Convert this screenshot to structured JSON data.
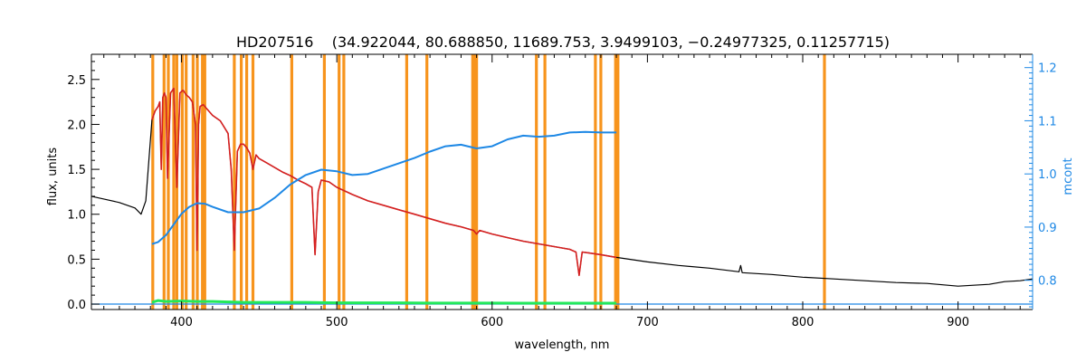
{
  "chart_data": {
    "type": "line",
    "title": "HD207516    (34.922044, 80.688850, 11689.753, 3.9499103, −0.24977325, 0.11257715)",
    "xlabel": "wavelength, nm",
    "ylabel": "flux, units",
    "ylabel_right": "mcont",
    "xlim": [
      342,
      948
    ],
    "ylim": [
      -0.06,
      2.78
    ],
    "ylim_right": [
      0.745,
      1.225
    ],
    "x_ticks": [
      400,
      500,
      600,
      700,
      800,
      900
    ],
    "y_ticks": [
      0.0,
      0.5,
      1.0,
      1.5,
      2.0,
      2.5
    ],
    "y_ticks_right": [
      0.8,
      0.9,
      1.0,
      1.1,
      1.2
    ],
    "masked_lines_nm": [
      381.5,
      388.8,
      391.5,
      395.0,
      397.0,
      400.5,
      403.0,
      407.5,
      410.2,
      413.5,
      415.0,
      434.0,
      438.5,
      442.0,
      446.0,
      471.0,
      492.0,
      501.5,
      504.5,
      545.0,
      558.0,
      587.5,
      588.5,
      590.0,
      628.5,
      634.0,
      666.5,
      670.0,
      679.5,
      681.0,
      814.0
    ],
    "series": [
      {
        "name": "",
        "role": "observed",
        "color": "#000000",
        "x": [
          342,
          350,
          360,
          370,
          374,
          377,
          379,
          381,
          383,
          385,
          386,
          387,
          388,
          389,
          390,
          391,
          393,
          395,
          397,
          399,
          401,
          403,
          405,
          407,
          409,
          410,
          411,
          412,
          414,
          416,
          418,
          420,
          425,
          430,
          432,
          434,
          436,
          438,
          440,
          442,
          444,
          446,
          448,
          450,
          455,
          460,
          465,
          470,
          475,
          480,
          484,
          486,
          488,
          490,
          495,
          500,
          505,
          510,
          520,
          530,
          540,
          550,
          560,
          570,
          580,
          588,
          590,
          592,
          600,
          610,
          620,
          630,
          640,
          650,
          654,
          656,
          658,
          662,
          670,
          680,
          700,
          720,
          740,
          759,
          760,
          761,
          780,
          800,
          820,
          840,
          860,
          880,
          900,
          920,
          930,
          940,
          948
        ],
        "y": [
          1.2,
          1.17,
          1.13,
          1.07,
          1.0,
          1.15,
          1.6,
          2.05,
          2.15,
          2.2,
          2.25,
          1.5,
          2.3,
          2.35,
          2.3,
          1.4,
          2.35,
          2.4,
          1.3,
          2.35,
          2.38,
          2.33,
          2.3,
          2.25,
          2.0,
          0.6,
          2.0,
          2.2,
          2.22,
          2.18,
          2.14,
          2.1,
          2.04,
          1.9,
          1.5,
          0.6,
          1.7,
          1.78,
          1.78,
          1.74,
          1.68,
          1.5,
          1.66,
          1.62,
          1.57,
          1.52,
          1.47,
          1.43,
          1.38,
          1.34,
          1.3,
          0.55,
          1.25,
          1.38,
          1.36,
          1.3,
          1.26,
          1.22,
          1.15,
          1.1,
          1.05,
          1.0,
          0.95,
          0.9,
          0.86,
          0.82,
          0.78,
          0.82,
          0.78,
          0.74,
          0.7,
          0.67,
          0.64,
          0.61,
          0.58,
          0.32,
          0.58,
          0.57,
          0.55,
          0.52,
          0.47,
          0.43,
          0.4,
          0.36,
          0.43,
          0.35,
          0.33,
          0.3,
          0.28,
          0.26,
          0.24,
          0.23,
          0.2,
          0.22,
          0.25,
          0.26,
          0.28
        ]
      },
      {
        "name": "",
        "role": "model",
        "color": "#d62020",
        "x": [
          381,
          383,
          385,
          386,
          387,
          388,
          389,
          390,
          391,
          393,
          395,
          397,
          399,
          401,
          403,
          405,
          407,
          409,
          410,
          411,
          412,
          414,
          416,
          418,
          420,
          425,
          430,
          432,
          434,
          436,
          438,
          440,
          442,
          444,
          446,
          448,
          450,
          455,
          460,
          465,
          470,
          475,
          480,
          484,
          486,
          488,
          490,
          495,
          500,
          505,
          510,
          520,
          530,
          540,
          550,
          560,
          570,
          580,
          588,
          590,
          592,
          600,
          610,
          620,
          630,
          640,
          650,
          654,
          656,
          658,
          662,
          670,
          680
        ],
        "y": [
          2.05,
          2.15,
          2.2,
          2.25,
          1.5,
          2.3,
          2.35,
          2.3,
          1.4,
          2.35,
          2.4,
          1.3,
          2.35,
          2.38,
          2.33,
          2.3,
          2.25,
          2.0,
          0.6,
          2.0,
          2.2,
          2.22,
          2.18,
          2.14,
          2.1,
          2.04,
          1.9,
          1.5,
          0.6,
          1.7,
          1.78,
          1.78,
          1.74,
          1.68,
          1.5,
          1.66,
          1.62,
          1.57,
          1.52,
          1.47,
          1.43,
          1.38,
          1.34,
          1.3,
          0.55,
          1.25,
          1.38,
          1.36,
          1.3,
          1.26,
          1.22,
          1.15,
          1.1,
          1.05,
          1.0,
          0.95,
          0.9,
          0.86,
          0.82,
          0.78,
          0.82,
          0.78,
          0.74,
          0.7,
          0.67,
          0.64,
          0.61,
          0.58,
          0.32,
          0.58,
          0.57,
          0.55,
          0.52
        ]
      },
      {
        "name": "",
        "role": "mcont",
        "axis": "right",
        "color": "#1e88e5",
        "x": [
          381,
          385,
          390,
          395,
          400,
          405,
          410,
          415,
          420,
          430,
          440,
          450,
          460,
          470,
          480,
          490,
          500,
          510,
          520,
          530,
          540,
          550,
          560,
          570,
          580,
          590,
          600,
          610,
          620,
          630,
          640,
          650,
          660,
          670,
          680
        ],
        "y": [
          0.868,
          0.872,
          0.885,
          0.905,
          0.925,
          0.938,
          0.945,
          0.944,
          0.938,
          0.928,
          0.928,
          0.935,
          0.955,
          0.98,
          0.998,
          1.008,
          1.005,
          0.998,
          1.0,
          1.01,
          1.02,
          1.03,
          1.042,
          1.052,
          1.055,
          1.048,
          1.052,
          1.065,
          1.072,
          1.07,
          1.072,
          1.078,
          1.079,
          1.078,
          1.078
        ]
      },
      {
        "name": "",
        "role": "residual",
        "color": "#22e85a",
        "x": [
          381,
          385,
          390,
          400,
          410,
          420,
          430,
          440,
          460,
          480,
          500,
          520,
          540,
          560,
          580,
          600,
          620,
          640,
          660,
          680
        ],
        "y": [
          0.02,
          0.04,
          0.03,
          0.035,
          0.03,
          0.03,
          0.025,
          0.02,
          0.02,
          0.02,
          0.015,
          0.015,
          0.015,
          0.012,
          0.012,
          0.012,
          0.01,
          0.01,
          0.01,
          0.01
        ]
      },
      {
        "name": "",
        "role": "baseline",
        "color": "#1e88e5",
        "x": [
          342,
          948
        ],
        "y": [
          0.0,
          0.0
        ]
      }
    ]
  }
}
